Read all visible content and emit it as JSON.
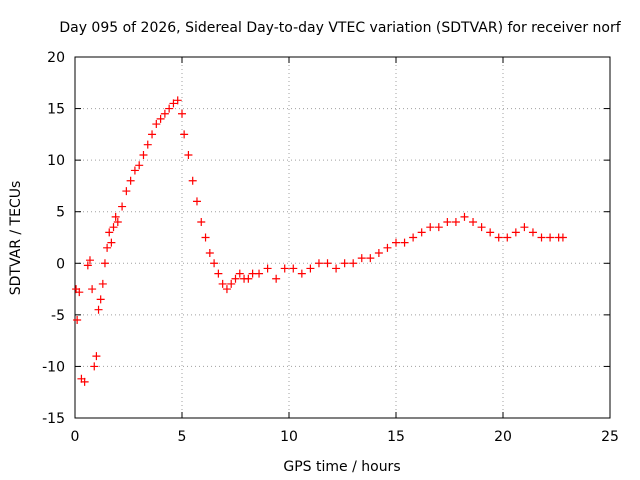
{
  "chart_data": {
    "type": "scatter",
    "title": "Day 095 of 2026, Sidereal Day-to-day VTEC variation (SDTVAR) for receiver norf",
    "xlabel": "GPS time / hours",
    "ylabel": "SDTVAR / TECUs",
    "xlim": [
      0,
      25
    ],
    "ylim": [
      -15,
      20
    ],
    "xticks": [
      "0",
      "5",
      "10",
      "15",
      "20",
      "25"
    ],
    "yticks": [
      "20",
      "15",
      "10",
      "5",
      "0",
      "-5",
      "-10",
      "-15"
    ],
    "grid": true,
    "series": [
      {
        "name": "SDTVAR",
        "marker": "+",
        "color": "#ff0000",
        "x": [
          0.05,
          0.1,
          0.2,
          0.3,
          0.45,
          0.6,
          0.7,
          0.8,
          0.9,
          1.0,
          1.1,
          1.2,
          1.3,
          1.4,
          1.5,
          1.6,
          1.7,
          1.8,
          1.9,
          2.0,
          2.2,
          2.4,
          2.6,
          2.8,
          3.0,
          3.2,
          3.4,
          3.6,
          3.8,
          4.0,
          4.2,
          4.4,
          4.6,
          4.8,
          5.0,
          5.1,
          5.3,
          5.5,
          5.7,
          5.9,
          6.1,
          6.3,
          6.5,
          6.7,
          6.9,
          7.1,
          7.3,
          7.5,
          7.7,
          7.9,
          8.1,
          8.3,
          8.6,
          9.0,
          9.4,
          9.8,
          10.2,
          10.6,
          11.0,
          11.4,
          11.8,
          12.2,
          12.6,
          13.0,
          13.4,
          13.8,
          14.2,
          14.6,
          15.0,
          15.4,
          15.8,
          16.2,
          16.6,
          17.0,
          17.4,
          17.8,
          18.2,
          18.6,
          19.0,
          19.4,
          19.8,
          20.2,
          20.6,
          21.0,
          21.4,
          21.8,
          22.2,
          22.6,
          22.8
        ],
        "y": [
          -2.5,
          -5.5,
          -2.8,
          -11.2,
          -11.5,
          -0.2,
          0.3,
          -2.5,
          -10.0,
          -9.0,
          -4.5,
          -3.5,
          -2.0,
          0.0,
          1.5,
          3.0,
          2.0,
          3.5,
          4.5,
          4.0,
          5.5,
          7.0,
          8.0,
          9.0,
          9.5,
          10.5,
          11.5,
          12.5,
          13.5,
          14.0,
          14.5,
          15.0,
          15.5,
          15.8,
          14.5,
          12.5,
          10.5,
          8.0,
          6.0,
          4.0,
          2.5,
          1.0,
          0.0,
          -1.0,
          -2.0,
          -2.5,
          -2.0,
          -1.5,
          -1.0,
          -1.5,
          -1.5,
          -1.0,
          -1.0,
          -0.5,
          -1.5,
          -0.5,
          -0.5,
          -1.0,
          -0.5,
          0.0,
          0.0,
          -0.5,
          0.0,
          0.0,
          0.5,
          0.5,
          1.0,
          1.5,
          2.0,
          2.0,
          2.5,
          3.0,
          3.5,
          3.5,
          4.0,
          4.0,
          4.5,
          4.0,
          3.5,
          3.0,
          2.5,
          2.5,
          3.0,
          3.5,
          3.0,
          2.5,
          2.5,
          2.5,
          2.5
        ]
      }
    ]
  }
}
